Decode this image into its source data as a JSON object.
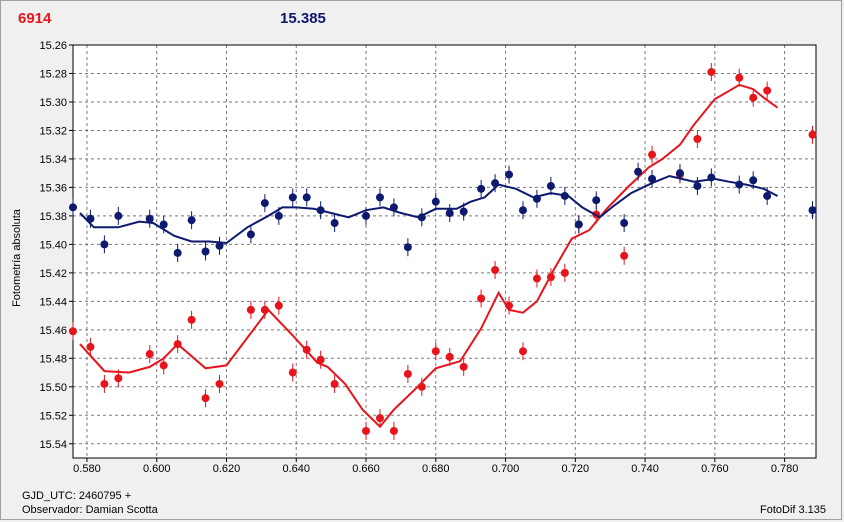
{
  "header": {
    "left_value": "6914",
    "right_value": "15.385"
  },
  "footer": {
    "gjd": "GJD_UTC: 2460795 +",
    "observer": "Observador: Damian Scotta",
    "version": "FotoDif 3.135"
  },
  "chart_data": {
    "type": "scatter",
    "ylabel": "Fotometría absoluta",
    "xlim": [
      0.576,
      0.789
    ],
    "ylim": [
      15.26,
      15.55
    ],
    "y_inverted": true,
    "grid": true,
    "xticks": [
      "0.580",
      "0.600",
      "0.620",
      "0.640",
      "0.660",
      "0.680",
      "0.700",
      "0.720",
      "0.740",
      "0.760",
      "0.780"
    ],
    "yticks": [
      "15.26",
      "15.28",
      "15.30",
      "15.32",
      "15.34",
      "15.36",
      "15.38",
      "15.40",
      "15.42",
      "15.44",
      "15.46",
      "15.48",
      "15.50",
      "15.52",
      "15.54"
    ],
    "colors": {
      "red": "#e8141c",
      "blue": "#0e1a6e"
    },
    "series": [
      {
        "color": "red",
        "x": [
          0.576,
          0.581,
          0.585,
          0.589,
          0.598,
          0.602,
          0.606,
          0.61,
          0.614,
          0.618,
          0.627,
          0.631,
          0.635,
          0.639,
          0.643,
          0.647,
          0.651,
          0.66,
          0.664,
          0.668,
          0.672,
          0.676,
          0.68,
          0.684,
          0.688,
          0.693,
          0.697,
          0.701,
          0.705,
          0.709,
          0.713,
          0.717,
          0.721,
          0.726,
          0.734,
          0.742,
          0.75,
          0.755,
          0.759,
          0.767,
          0.771,
          0.775,
          0.788
        ],
        "y": [
          15.461,
          15.472,
          15.498,
          15.494,
          15.477,
          15.485,
          15.47,
          15.453,
          15.508,
          15.498,
          15.446,
          15.446,
          15.443,
          15.49,
          15.474,
          15.481,
          15.498,
          15.531,
          15.522,
          15.531,
          15.491,
          15.5,
          15.475,
          15.479,
          15.486,
          15.438,
          15.418,
          15.443,
          15.475,
          15.424,
          15.423,
          15.42,
          15.386,
          15.379,
          15.408,
          15.337,
          15.351,
          15.326,
          15.279,
          15.283,
          15.297,
          15.292,
          15.323
        ],
        "trend_x": [
          0.578,
          0.585,
          0.592,
          0.598,
          0.602,
          0.606,
          0.614,
          0.62,
          0.632,
          0.639,
          0.646,
          0.649,
          0.654,
          0.659,
          0.664,
          0.668,
          0.674,
          0.68,
          0.687,
          0.693,
          0.698,
          0.701,
          0.705,
          0.709,
          0.714,
          0.719,
          0.724,
          0.729,
          0.735,
          0.741,
          0.745,
          0.75,
          0.754,
          0.76,
          0.767,
          0.771,
          0.774,
          0.778
        ],
        "trend_y": [
          15.47,
          15.489,
          15.49,
          15.486,
          15.48,
          15.47,
          15.487,
          15.485,
          15.446,
          15.464,
          15.483,
          15.486,
          15.498,
          15.516,
          15.528,
          15.516,
          15.502,
          15.487,
          15.482,
          15.459,
          15.434,
          15.446,
          15.448,
          15.44,
          15.417,
          15.396,
          15.39,
          15.375,
          15.36,
          15.346,
          15.34,
          15.33,
          15.316,
          15.298,
          15.288,
          15.291,
          15.297,
          15.304
        ]
      },
      {
        "color": "blue",
        "x": [
          0.576,
          0.581,
          0.585,
          0.589,
          0.598,
          0.602,
          0.606,
          0.61,
          0.614,
          0.618,
          0.627,
          0.631,
          0.635,
          0.639,
          0.643,
          0.647,
          0.651,
          0.66,
          0.664,
          0.668,
          0.672,
          0.676,
          0.68,
          0.684,
          0.688,
          0.693,
          0.697,
          0.701,
          0.705,
          0.709,
          0.713,
          0.717,
          0.721,
          0.726,
          0.734,
          0.738,
          0.742,
          0.75,
          0.755,
          0.759,
          0.767,
          0.771,
          0.775,
          0.788
        ],
        "y": [
          15.374,
          15.382,
          15.4,
          15.38,
          15.382,
          15.386,
          15.406,
          15.383,
          15.405,
          15.401,
          15.393,
          15.371,
          15.38,
          15.367,
          15.367,
          15.376,
          15.385,
          15.38,
          15.367,
          15.374,
          15.402,
          15.381,
          15.37,
          15.378,
          15.377,
          15.361,
          15.357,
          15.351,
          15.376,
          15.368,
          15.359,
          15.366,
          15.386,
          15.369,
          15.385,
          15.349,
          15.354,
          15.35,
          15.359,
          15.353,
          15.358,
          15.355,
          15.366,
          15.376
        ],
        "trend_x": [
          0.578,
          0.582,
          0.589,
          0.595,
          0.599,
          0.605,
          0.61,
          0.615,
          0.62,
          0.626,
          0.632,
          0.636,
          0.64,
          0.645,
          0.65,
          0.655,
          0.66,
          0.665,
          0.67,
          0.675,
          0.68,
          0.686,
          0.69,
          0.694,
          0.698,
          0.703,
          0.708,
          0.713,
          0.718,
          0.722,
          0.727,
          0.731,
          0.736,
          0.742,
          0.747,
          0.754,
          0.76,
          0.764,
          0.769,
          0.774,
          0.778
        ],
        "trend_y": [
          15.378,
          15.388,
          15.388,
          15.384,
          15.385,
          15.394,
          15.398,
          15.398,
          15.399,
          15.388,
          15.38,
          15.374,
          15.374,
          15.375,
          15.378,
          15.381,
          15.376,
          15.374,
          15.378,
          15.381,
          15.375,
          15.375,
          15.37,
          15.367,
          15.358,
          15.361,
          15.367,
          15.364,
          15.366,
          15.374,
          15.381,
          15.373,
          15.364,
          15.357,
          15.352,
          15.356,
          15.354,
          15.356,
          15.358,
          15.361,
          15.366
        ]
      }
    ]
  }
}
